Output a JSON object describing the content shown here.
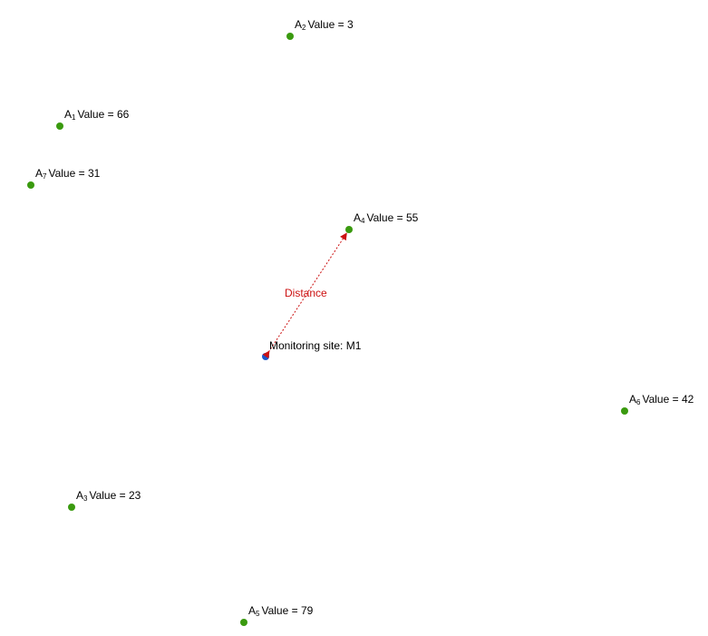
{
  "colors": {
    "point": "#3a9a0f",
    "site": "#1a55c8",
    "distance": "#cc1111",
    "text": "#000000"
  },
  "points": [
    {
      "id": "A1",
      "prefix": "A",
      "sub": "1",
      "value_text": "Value = 66"
    },
    {
      "id": "A2",
      "prefix": "A",
      "sub": "2",
      "value_text": "Value = 3"
    },
    {
      "id": "A3",
      "prefix": "A",
      "sub": "3",
      "value_text": "Value = 23"
    },
    {
      "id": "A4",
      "prefix": "A",
      "sub": "4",
      "value_text": "Value = 55"
    },
    {
      "id": "A5",
      "prefix": "A",
      "sub": "5",
      "value_text": "Value = 79"
    },
    {
      "id": "A6",
      "prefix": "A",
      "sub": "6",
      "value_text": "Value = 42"
    },
    {
      "id": "A7",
      "prefix": "A",
      "sub": "7",
      "value_text": "Value = 31"
    }
  ],
  "site": {
    "label": "Monitoring site: M1"
  },
  "distance": {
    "label": "Distance",
    "from": "M1",
    "to": "A4"
  }
}
